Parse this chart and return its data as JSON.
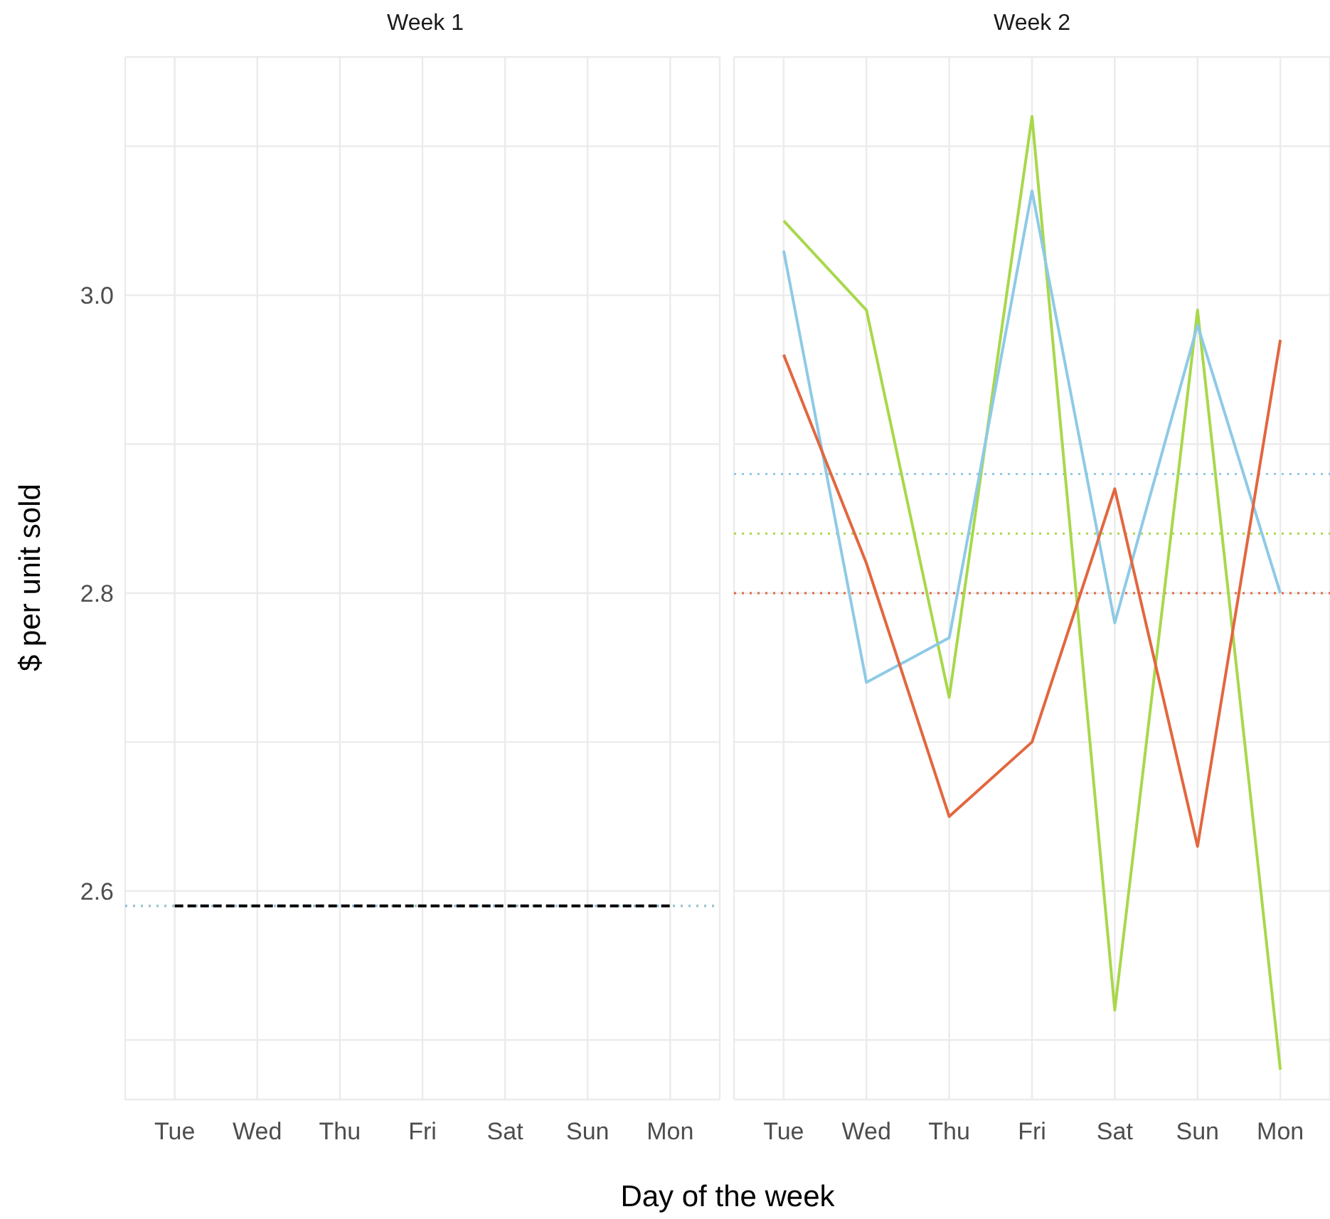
{
  "chart_data": [
    {
      "type": "line",
      "title": "Week 1",
      "xlabel": "Day of the week",
      "ylabel": "$ per unit sold",
      "categories": [
        "Tue",
        "Wed",
        "Thu",
        "Fri",
        "Sat",
        "Sun",
        "Mon"
      ],
      "series": [
        {
          "color": "#000000",
          "line_style": "dashed",
          "values": [
            2.59,
            2.59,
            2.59,
            2.59,
            2.59,
            2.59,
            2.59
          ]
        }
      ],
      "ref_lines": [
        {
          "axis": "y",
          "value": 2.59,
          "color": "#e2673f",
          "line_style": "dotted"
        },
        {
          "axis": "y",
          "value": 2.59,
          "color": "#8ecae6",
          "line_style": "dotted"
        }
      ],
      "ylim": [
        2.46,
        3.16
      ],
      "yticks": [
        {
          "value": 2.5,
          "label": null
        },
        {
          "value": 2.6,
          "label": "2.6"
        },
        {
          "value": 2.7,
          "label": null
        },
        {
          "value": 2.8,
          "label": "2.8"
        },
        {
          "value": 2.9,
          "label": null
        },
        {
          "value": 3,
          "label": "3.0"
        },
        {
          "value": 3.1,
          "label": null
        }
      ],
      "grid": true,
      "legend": false,
      "marker": "none"
    },
    {
      "type": "line",
      "title": "Week 2",
      "categories": [
        "Tue",
        "Wed",
        "Thu",
        "Fri",
        "Sat",
        "Sun",
        "Mon"
      ],
      "series": [
        {
          "color": "#a8d84b",
          "line_style": "solid",
          "values": [
            3.05,
            2.99,
            2.73,
            3.12,
            2.52,
            2.99,
            2.48
          ]
        },
        {
          "color": "#8ecae6",
          "line_style": "solid",
          "values": [
            3.03,
            2.74,
            2.77,
            3.07,
            2.78,
            2.98,
            2.8
          ]
        },
        {
          "color": "#e2673f",
          "line_style": "solid",
          "values": [
            2.96,
            2.82,
            2.65,
            2.7,
            2.87,
            2.63,
            2.97
          ]
        }
      ],
      "ref_lines": [
        {
          "axis": "y",
          "value": 2.88,
          "color": "#8ecae6",
          "line_style": "dotted"
        },
        {
          "axis": "y",
          "value": 2.84,
          "color": "#a8d84b",
          "line_style": "dotted"
        },
        {
          "axis": "y",
          "value": 2.8,
          "color": "#e2673f",
          "line_style": "dotted"
        }
      ],
      "ylim": [
        2.46,
        3.16
      ],
      "yticks": [
        {
          "value": 2.5,
          "label": null
        },
        {
          "value": 2.6,
          "label": null
        },
        {
          "value": 2.7,
          "label": null
        },
        {
          "value": 2.8,
          "label": null
        },
        {
          "value": 2.9,
          "label": null
        },
        {
          "value": 3,
          "label": null
        },
        {
          "value": 3.1,
          "label": null
        }
      ],
      "tick_labels": "x",
      "grid": true,
      "legend": false,
      "marker": "none"
    }
  ]
}
